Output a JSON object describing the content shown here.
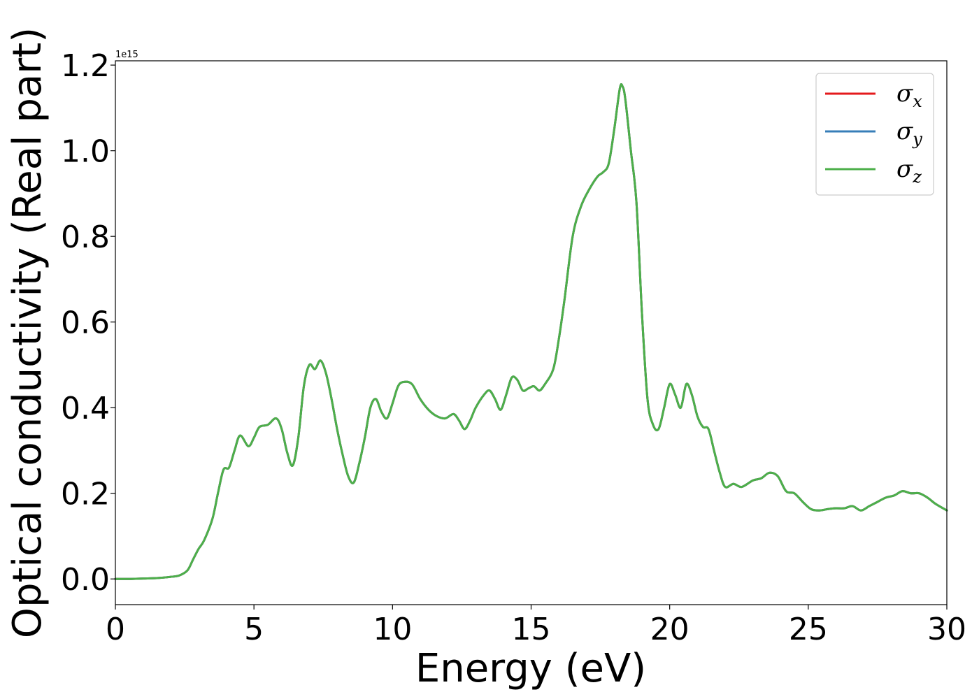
{
  "chart_data": {
    "type": "line",
    "xlabel": "Energy (eV)",
    "ylabel": "Optical conductivity (Real part)",
    "y_offset_text": "1e15",
    "xlim": [
      0,
      30
    ],
    "ylim": [
      -0.06,
      1.21
    ],
    "x_ticks": [
      0,
      5,
      10,
      15,
      20,
      25,
      30
    ],
    "x_tick_labels": [
      "0",
      "5",
      "10",
      "15",
      "20",
      "25",
      "30"
    ],
    "y_ticks": [
      0.0,
      0.2,
      0.4,
      0.6,
      0.8,
      1.0,
      1.2
    ],
    "y_tick_labels": [
      "0.0",
      "0.2",
      "0.4",
      "0.6",
      "0.8",
      "1.0",
      "1.2"
    ],
    "grid": false,
    "legend_position": "top-right",
    "series": [
      {
        "name": "σ",
        "subscript": "x",
        "color": "#e41a1c"
      },
      {
        "name": "σ",
        "subscript": "y",
        "color": "#377eb8"
      },
      {
        "name": "σ",
        "subscript": "z",
        "color": "#4daf4a"
      }
    ],
    "x": [
      0,
      0.5,
      1.0,
      1.5,
      2.0,
      2.3,
      2.6,
      2.8,
      3.0,
      3.2,
      3.5,
      3.7,
      3.9,
      4.1,
      4.3,
      4.5,
      4.8,
      5.0,
      5.2,
      5.5,
      5.8,
      6.0,
      6.2,
      6.4,
      6.6,
      6.8,
      7.0,
      7.2,
      7.4,
      7.6,
      7.8,
      8.0,
      8.2,
      8.4,
      8.6,
      8.8,
      9.0,
      9.2,
      9.4,
      9.6,
      9.8,
      10.0,
      10.2,
      10.4,
      10.7,
      11.0,
      11.3,
      11.6,
      11.9,
      12.2,
      12.4,
      12.6,
      12.8,
      13.0,
      13.3,
      13.5,
      13.7,
      13.9,
      14.1,
      14.3,
      14.5,
      14.7,
      14.9,
      15.1,
      15.3,
      15.5,
      15.8,
      16.0,
      16.2,
      16.5,
      16.8,
      17.1,
      17.4,
      17.6,
      17.8,
      18.0,
      18.2,
      18.3,
      18.4,
      18.6,
      18.8,
      19.0,
      19.2,
      19.4,
      19.6,
      19.8,
      20.0,
      20.2,
      20.4,
      20.6,
      20.8,
      21.0,
      21.2,
      21.4,
      21.6,
      21.8,
      22.0,
      22.3,
      22.6,
      23.0,
      23.3,
      23.6,
      23.9,
      24.2,
      24.5,
      24.8,
      25.1,
      25.4,
      25.7,
      26.0,
      26.3,
      26.6,
      26.9,
      27.2,
      27.5,
      27.8,
      28.1,
      28.4,
      28.7,
      29.0,
      29.3,
      29.6,
      30.0
    ],
    "values": [
      0.0,
      0.0,
      0.001,
      0.002,
      0.005,
      0.008,
      0.02,
      0.045,
      0.07,
      0.09,
      0.14,
      0.2,
      0.255,
      0.26,
      0.3,
      0.335,
      0.31,
      0.33,
      0.355,
      0.36,
      0.375,
      0.35,
      0.295,
      0.265,
      0.33,
      0.45,
      0.5,
      0.49,
      0.51,
      0.48,
      0.42,
      0.35,
      0.29,
      0.24,
      0.225,
      0.27,
      0.33,
      0.4,
      0.42,
      0.39,
      0.375,
      0.41,
      0.45,
      0.46,
      0.455,
      0.42,
      0.395,
      0.38,
      0.375,
      0.385,
      0.37,
      0.35,
      0.37,
      0.4,
      0.43,
      0.44,
      0.42,
      0.395,
      0.43,
      0.47,
      0.465,
      0.44,
      0.445,
      0.45,
      0.44,
      0.455,
      0.49,
      0.56,
      0.65,
      0.8,
      0.87,
      0.91,
      0.94,
      0.95,
      0.97,
      1.05,
      1.145,
      1.15,
      1.12,
      1.0,
      0.88,
      0.62,
      0.42,
      0.36,
      0.35,
      0.4,
      0.455,
      0.43,
      0.4,
      0.455,
      0.43,
      0.38,
      0.355,
      0.35,
      0.3,
      0.25,
      0.215,
      0.222,
      0.215,
      0.23,
      0.235,
      0.248,
      0.24,
      0.205,
      0.2,
      0.18,
      0.163,
      0.16,
      0.163,
      0.165,
      0.165,
      0.17,
      0.16,
      0.17,
      0.18,
      0.19,
      0.195,
      0.205,
      0.2,
      0.2,
      0.19,
      0.175,
      0.16
    ]
  }
}
